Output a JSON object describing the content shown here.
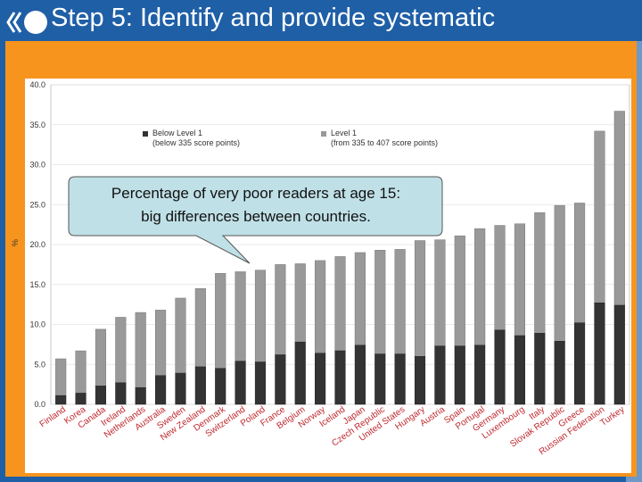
{
  "header": {
    "title": "Step 5: Identify and provide systematic"
  },
  "callout": {
    "line1": "Percentage of very poor readers at age 15:",
    "line2": "big differences between countries."
  },
  "colors": {
    "below_level1": "#333333",
    "level1": "#999999",
    "panel": "#f7941d",
    "header": "#1f5fa6",
    "callout": "#bfe0e6"
  },
  "chart_data": {
    "type": "bar",
    "stacked": true,
    "ylabel": "%",
    "ylim": [
      0,
      40
    ],
    "y_ticks": [
      "0.0",
      "5.0",
      "10.0",
      "15.0",
      "20.0",
      "25.0",
      "30.0",
      "35.0",
      "40.0"
    ],
    "legend": [
      {
        "name": "Below Level 1",
        "sub": "(below 335 score points)"
      },
      {
        "name": "Level 1",
        "sub": "(from 335 to 407 score points)"
      }
    ],
    "categories": [
      "Finland",
      "Korea",
      "Canada",
      "Ireland",
      "Netherlands",
      "Australia",
      "Sweden",
      "New Zealand",
      "Denmark",
      "Switzerland",
      "Poland",
      "France",
      "Belgium",
      "Norway",
      "Iceland",
      "Japan",
      "Czech Republic",
      "United States",
      "Hungary",
      "Austria",
      "Spain",
      "Portugal",
      "Germany",
      "Luxembourg",
      "Italy",
      "Slovak Republic",
      "Greece",
      "Russian Federation",
      "Turkey"
    ],
    "series": [
      {
        "name": "Below Level 1",
        "values": [
          1.1,
          1.4,
          2.3,
          2.7,
          2.1,
          3.6,
          3.9,
          4.7,
          4.5,
          5.4,
          5.3,
          6.2,
          7.8,
          6.4,
          6.7,
          7.4,
          6.3,
          6.3,
          6.0,
          7.3,
          7.3,
          7.4,
          9.3,
          8.6,
          8.9,
          7.9,
          10.2,
          12.7,
          12.4
        ]
      },
      {
        "name": "Level 1",
        "values": [
          4.6,
          5.3,
          7.1,
          8.2,
          9.4,
          8.2,
          9.4,
          9.8,
          11.9,
          11.2,
          11.5,
          11.3,
          9.8,
          11.6,
          11.8,
          11.6,
          13.0,
          13.1,
          14.5,
          13.3,
          13.8,
          14.6,
          13.1,
          14.0,
          15.1,
          17.0,
          15.0,
          21.5,
          24.3
        ]
      }
    ]
  }
}
